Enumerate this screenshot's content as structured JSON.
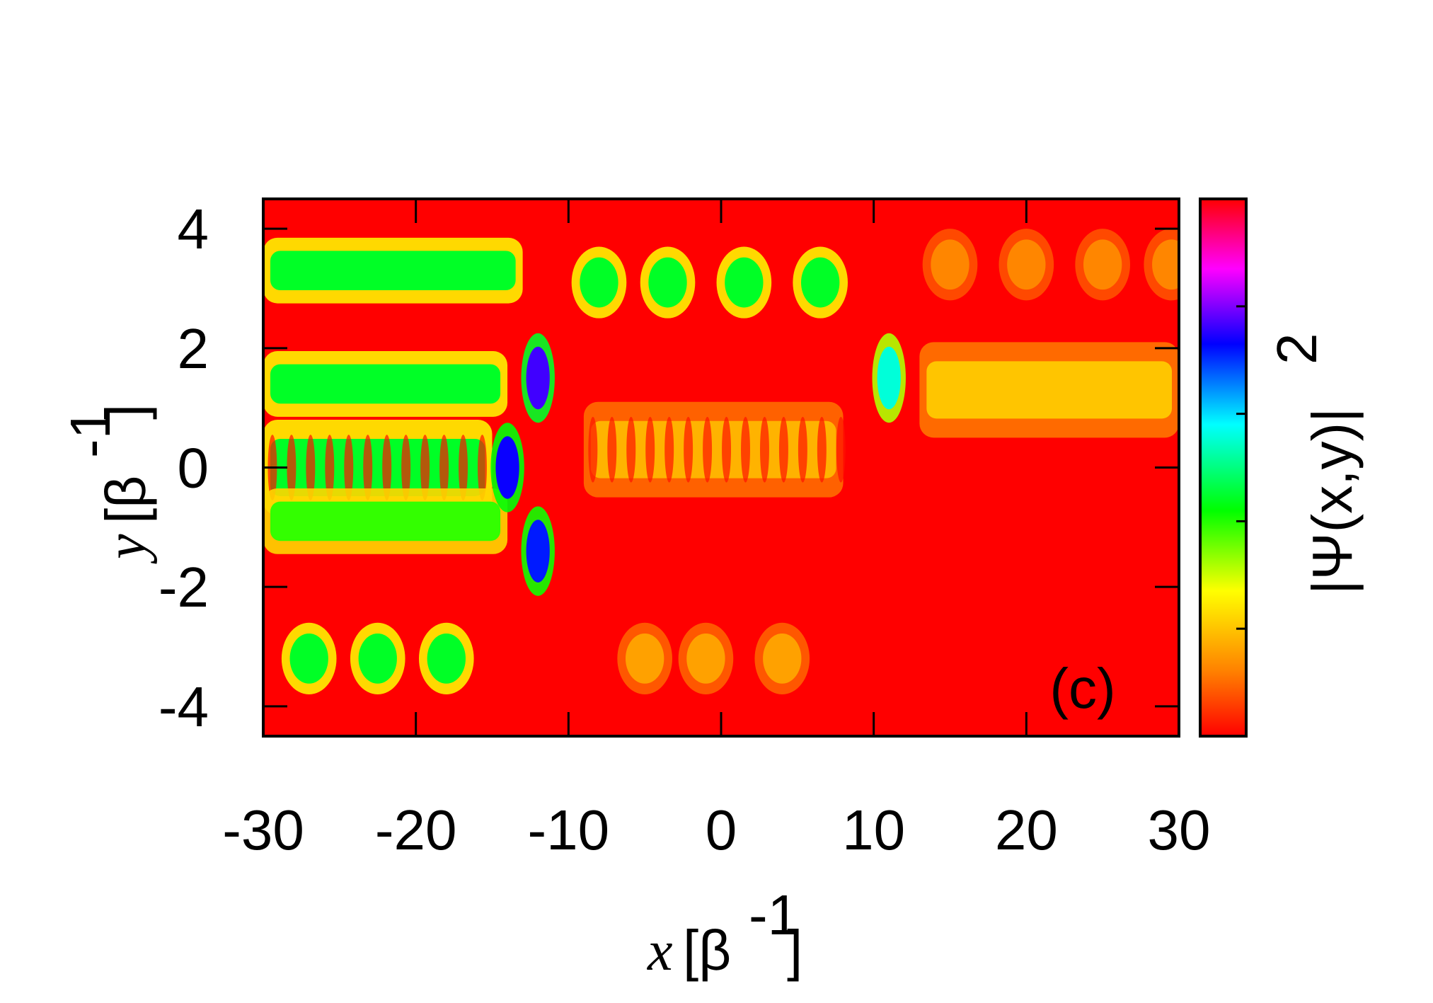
{
  "chart_data": {
    "type": "heatmap",
    "title": "",
    "panel_label": "(c)",
    "xlabel": {
      "var": "x",
      "unit": "[β",
      "exp": "-1",
      "close": "]"
    },
    "ylabel": {
      "var": "y",
      "unit": "[β",
      "exp": "-1",
      "close": "]"
    },
    "colorbar_label": {
      "main": "|Ψ(x,y)|",
      "exp": "2"
    },
    "xlim": [
      -30,
      30
    ],
    "ylim": [
      -4.5,
      4.5
    ],
    "x_ticks": [
      -30,
      -20,
      -10,
      0,
      10,
      20,
      30
    ],
    "y_ticks": [
      -4,
      -2,
      0,
      2,
      4
    ],
    "x_tick_labels": [
      "-30",
      "-20",
      "-10",
      "0",
      "10",
      "20",
      "30"
    ],
    "y_tick_labels": [
      "-4",
      "-2",
      "0",
      "2",
      "4"
    ],
    "colormap": [
      "#ff0000",
      "#ff8000",
      "#ffff00",
      "#00ff00",
      "#00ffff",
      "#0000ff",
      "#ff00ff",
      "#ff0000"
    ],
    "colorbar_ticks_labeled": false,
    "features": [
      {
        "name": "upper-guide-band",
        "x_range": [
          -30,
          -13
        ],
        "y": 3.3,
        "intensity": 0.45
      },
      {
        "name": "middle-guide-band",
        "x_range": [
          -30,
          -14
        ],
        "y": 1.4,
        "intensity": 0.45
      },
      {
        "name": "central-interference-stripes",
        "x_range": [
          -30,
          -15
        ],
        "y": 0,
        "intensity": 0.45
      },
      {
        "name": "lower-guide-band",
        "x_range": [
          -30,
          -14
        ],
        "y": -0.9,
        "intensity": 0.4
      },
      {
        "name": "lower-spots-left",
        "x": [
          -27,
          -22.5,
          -18
        ],
        "y": -3.2,
        "intensity": 0.45
      },
      {
        "name": "hot-spot-upper",
        "x": -12,
        "y": 1.5,
        "intensity": 0.75
      },
      {
        "name": "hot-spot-center",
        "x": -14,
        "y": 0,
        "intensity": 0.72
      },
      {
        "name": "hot-spot-lower",
        "x": -12,
        "y": -1.4,
        "intensity": 0.7
      },
      {
        "name": "upper-spots-middle",
        "x": [
          -8,
          -3.5,
          1.5,
          6.5
        ],
        "y": 3.1,
        "intensity": 0.45
      },
      {
        "name": "central-fringes",
        "x_range": [
          -9,
          8
        ],
        "y": 0.3,
        "intensity": 0.2
      },
      {
        "name": "lower-spots-middle",
        "x": [
          -5,
          -1,
          4
        ],
        "y": -3.2,
        "intensity": 0.18
      },
      {
        "name": "right-spot",
        "x": 11,
        "y": 1.5,
        "intensity": 0.55
      },
      {
        "name": "right-band",
        "x_range": [
          13,
          30
        ],
        "y": 1.3,
        "intensity": 0.22
      },
      {
        "name": "upper-spots-right",
        "x": [
          15,
          20,
          25,
          29.5
        ],
        "y": 3.4,
        "intensity": 0.15
      }
    ]
  }
}
